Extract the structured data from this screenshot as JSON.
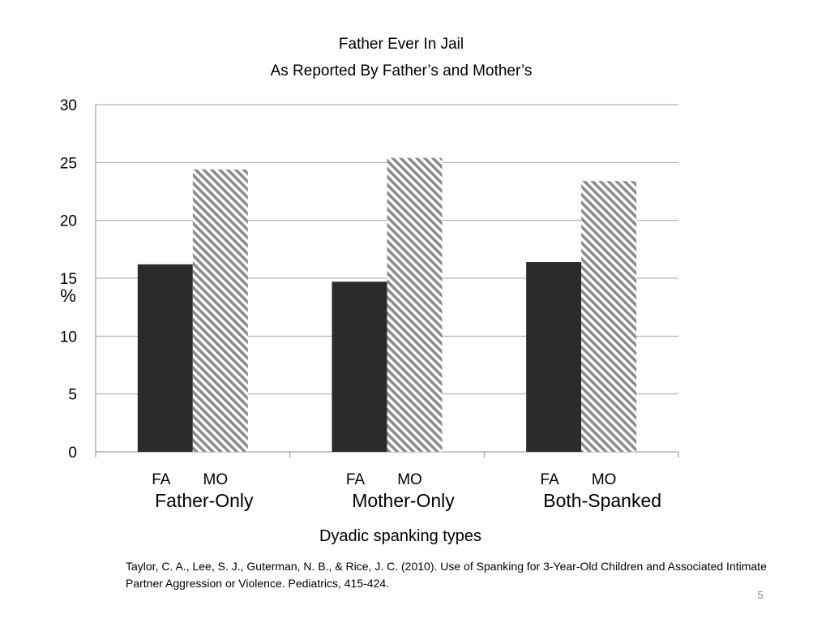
{
  "chart_data": {
    "type": "bar",
    "title": "Father Ever In Jail",
    "subtitle": "As Reported By Father’s and Mother’s",
    "xlabel": "Dyadic spanking types",
    "ylabel": "%",
    "ylim": [
      0,
      30
    ],
    "yticks": [
      "0",
      "5",
      "10",
      "15",
      "20",
      "25",
      "30"
    ],
    "grid": true,
    "categories": [
      "Father-Only",
      "Mother-Only",
      "Both-Spanked"
    ],
    "series": [
      {
        "name": "FA",
        "values": [
          16.2,
          14.7,
          16.4
        ],
        "color": "#2b2b2b",
        "pattern": "solid"
      },
      {
        "name": "MO",
        "values": [
          24.4,
          25.4,
          23.4
        ],
        "color": "#8c8c8c",
        "pattern": "diagonal-hatch"
      }
    ]
  },
  "citation": "Taylor, C. A., Lee, S. J., Guterman, N. B., & Rice, J. C. (2010). Use of Spanking for 3-Year-Old Children and Associated Intimate Partner Aggression or Violence. Pediatrics, 415-424.",
  "page_number": "5"
}
